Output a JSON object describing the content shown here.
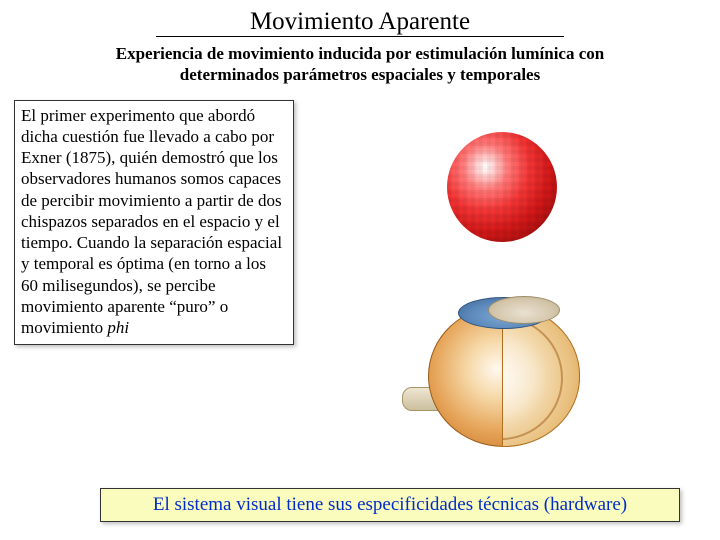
{
  "title": "Movimiento  Aparente",
  "subtitle": "Experiencia de movimiento inducida por estimulación lumínica con determinados parámetros espaciales y temporales",
  "body_text_before_phi": "El primer experimento que abordó dicha cuestión fue llevado a cabo por Exner (1875), quién demostró que los observadores humanos somos capaces de percibir movimiento a partir de dos chispazos separados en el espacio y el tiempo. Cuando la separación espacial y temporal es óptima (en torno a los 60 milisegundos), se percibe movimiento aparente “puro” o movimiento ",
  "phi_word": "phi",
  "footer_text": "El sistema visual tiene sus especificidades técnicas (hardware)",
  "images": {
    "top": {
      "name": "red-sphere",
      "alt": "Red shaded sphere (apparent-motion stimulus)"
    },
    "bottom": {
      "name": "eye-anatomy",
      "alt": "Cutaway anatomical illustration of a human eye"
    }
  },
  "colors": {
    "footer_bg": "#fafcbe",
    "footer_text": "#002bcc",
    "title_underline": "#000000"
  }
}
